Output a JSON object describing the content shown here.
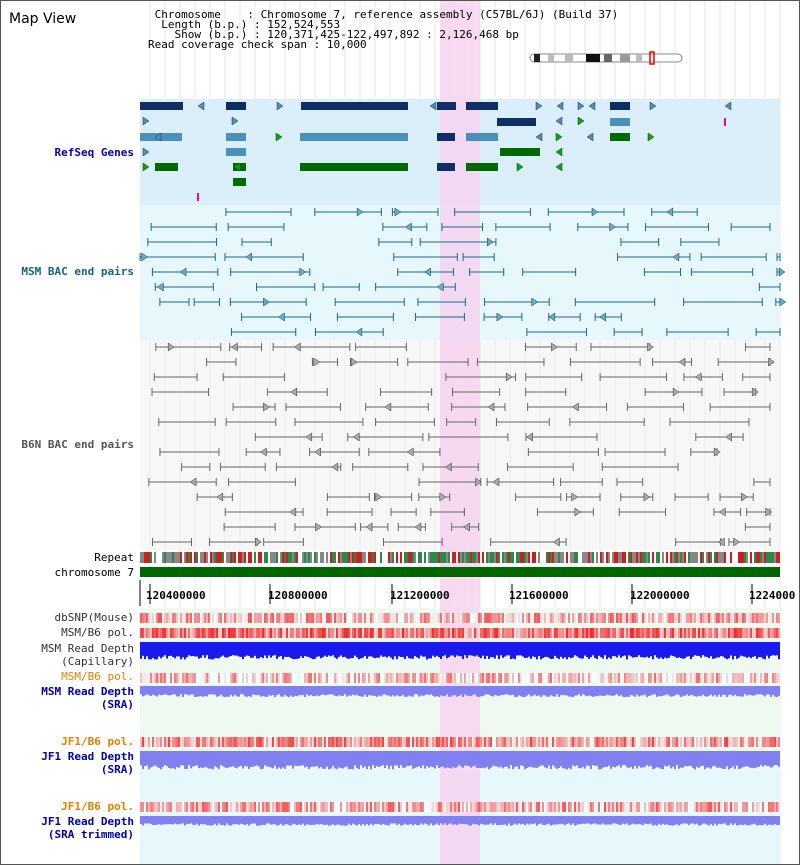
{
  "view": {
    "title": "Map View",
    "info": {
      "chromosome_label": "Chromosome",
      "chromosome_value": "Chromosome 7, reference assembly (C57BL/6J) (Build 37)",
      "length_label": "Length (b.p.)",
      "length_value": "152,524,553",
      "show_label": "Show (b.p.)",
      "show_value": "120,371,425-122,497,892 : 2,126,468 bp",
      "span_label": "Read coverage check span",
      "span_value": "10,000"
    }
  },
  "colors": {
    "refseq_bg": "#dbeffa",
    "msm_bg": "#e6f8fb",
    "b6n_bg": "#f2f2f2",
    "highlight": "#f6d3f0",
    "gene_dark": "#0d2f64",
    "gene_light": "#4a90b8",
    "gene_green": "#006a00",
    "msm_line": "#1a6888",
    "b6n_line": "#666666",
    "chromosome": "#006600",
    "snp_red": "#ee3333",
    "depth_blue": "#1a1aee",
    "depth_light": "#8080f0",
    "sra_bg": "#eefaf0"
  },
  "tracks": {
    "refseq": "RefSeq Genes",
    "msm_bac": "MSM BAC end pairs",
    "b6n_bac": "B6N BAC end pairs",
    "repeat": "Repeat",
    "chromosome": "chromosome 7",
    "dbsnp": "dbSNP(Mouse)",
    "msm_b6_pol": "MSM/B6 pol.",
    "msm_depth_cap_1": "MSM Read Depth",
    "msm_depth_cap_2": "(Capillary)",
    "msm_b6_pol_2": "MSM/B6 pol.",
    "msm_depth_sra_1": "MSM Read Depth",
    "msm_depth_sra_2": "(SRA)",
    "jf1_b6_pol": "JF1/B6 pol.",
    "jf1_depth_sra_1": "JF1 Read Depth",
    "jf1_depth_sra_2": "(SRA)",
    "jf1_b6_pol_2": "JF1/B6 pol.",
    "jf1_depth_trim_1": "JF1 Read Depth",
    "jf1_depth_trim_2": "(SRA trimmed)"
  },
  "axis": {
    "ticks": [
      "120400000",
      "120800000",
      "121200000",
      "121600000",
      "122000000",
      "1224000"
    ]
  }
}
